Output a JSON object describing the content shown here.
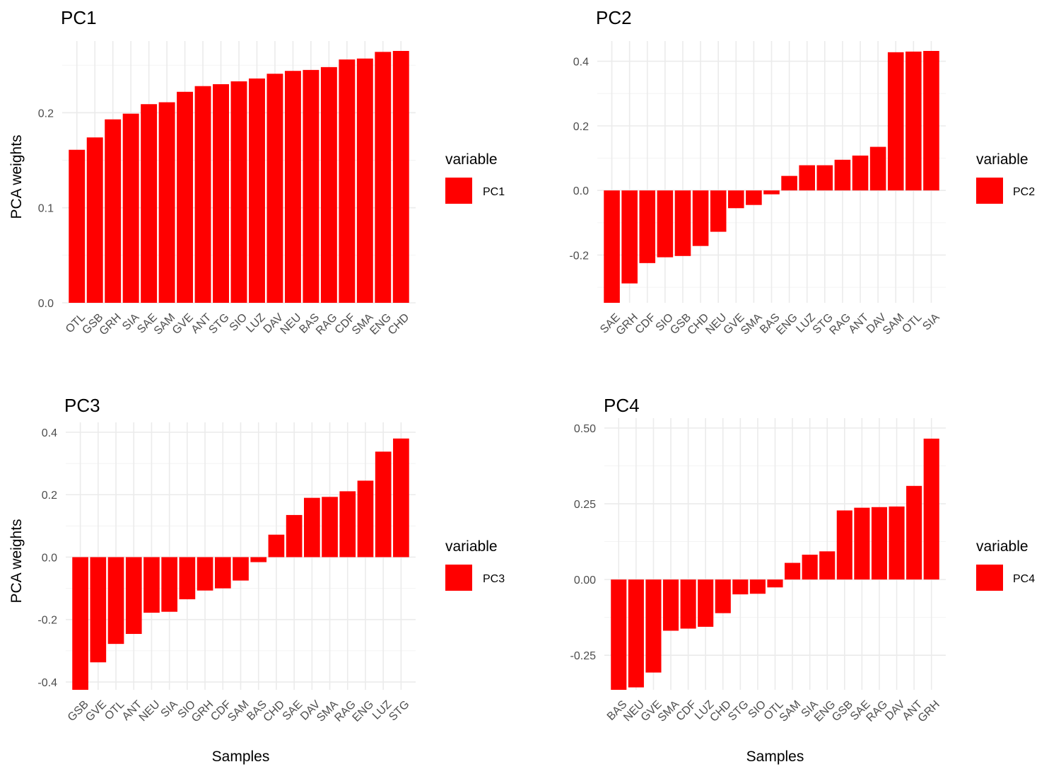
{
  "figure": {
    "panels": [
      {
        "legend": {
          "title": "variable",
          "label": "PC1"
        },
        "chart_data": {
          "type": "bar",
          "title": "PC1",
          "xlabel": "",
          "ylabel": "PCA weights",
          "categories": [
            "OTL",
            "GSB",
            "GRH",
            "SIA",
            "SAE",
            "SAM",
            "GVE",
            "ANT",
            "STG",
            "SIO",
            "LUZ",
            "DAV",
            "NEU",
            "BAS",
            "RAG",
            "CDF",
            "SMA",
            "ENG",
            "CHD"
          ],
          "series": [
            {
              "name": "PC1",
              "values": [
                0.161,
                0.174,
                0.193,
                0.199,
                0.209,
                0.211,
                0.222,
                0.228,
                0.23,
                0.233,
                0.236,
                0.241,
                0.244,
                0.245,
                0.248,
                0.256,
                0.257,
                0.264,
                0.265
              ]
            }
          ],
          "yticks": [
            0.0,
            0.1,
            0.2
          ],
          "ytick_labels": [
            "0.0",
            "0.1",
            "0.2"
          ],
          "ylim": [
            0,
            0.265
          ],
          "color": "#ff0000",
          "grid": true,
          "legend_position": "right"
        }
      },
      {
        "legend": {
          "title": "variable",
          "label": "PC2"
        },
        "chart_data": {
          "type": "bar",
          "title": "PC2",
          "xlabel": "",
          "ylabel": "",
          "categories": [
            "SAE",
            "GRH",
            "CDF",
            "SIO",
            "GSB",
            "CHD",
            "NEU",
            "GVE",
            "SMA",
            "BAS",
            "ENG",
            "LUZ",
            "STG",
            "RAG",
            "ANT",
            "DAV",
            "SAM",
            "OTL",
            "SIA"
          ],
          "series": [
            {
              "name": "PC2",
              "values": [
                -0.348,
                -0.288,
                -0.225,
                -0.207,
                -0.203,
                -0.172,
                -0.128,
                -0.055,
                -0.045,
                -0.012,
                0.045,
                0.078,
                0.078,
                0.095,
                0.108,
                0.135,
                0.428,
                0.43,
                0.432
              ]
            }
          ],
          "yticks": [
            -0.2,
            0.0,
            0.2,
            0.4
          ],
          "ytick_labels": [
            "-0.2",
            "0.0",
            "0.2",
            "0.4"
          ],
          "ylim": [
            -0.348,
            0.432
          ],
          "color": "#ff0000",
          "grid": true,
          "legend_position": "right"
        }
      },
      {
        "legend": {
          "title": "variable",
          "label": "PC3"
        },
        "chart_data": {
          "type": "bar",
          "title": "PC3",
          "xlabel": "Samples",
          "ylabel": "PCA weights",
          "categories": [
            "GSB",
            "GVE",
            "OTL",
            "ANT",
            "NEU",
            "SIA",
            "SIO",
            "GRH",
            "CDF",
            "SAM",
            "BAS",
            "CHD",
            "SAE",
            "DAV",
            "SMA",
            "RAG",
            "ENG",
            "LUZ",
            "STG"
          ],
          "series": [
            {
              "name": "PC3",
              "values": [
                -0.425,
                -0.337,
                -0.278,
                -0.246,
                -0.178,
                -0.175,
                -0.135,
                -0.107,
                -0.1,
                -0.075,
                -0.016,
                0.072,
                0.135,
                0.19,
                0.193,
                0.211,
                0.245,
                0.338,
                0.38
              ]
            }
          ],
          "yticks": [
            -0.4,
            -0.2,
            0.0,
            0.2,
            0.4
          ],
          "ytick_labels": [
            "-0.4",
            "-0.2",
            "0.0",
            "0.2",
            "0.4"
          ],
          "ylim": [
            -0.425,
            0.4
          ],
          "color": "#ff0000",
          "grid": true,
          "legend_position": "right"
        }
      },
      {
        "legend": {
          "title": "variable",
          "label": "PC4"
        },
        "chart_data": {
          "type": "bar",
          "title": "PC4",
          "xlabel": "Samples",
          "ylabel": "",
          "categories": [
            "BAS",
            "NEU",
            "GVE",
            "SMA",
            "CDF",
            "LUZ",
            "CHD",
            "STG",
            "SIO",
            "OTL",
            "SAM",
            "SIA",
            "ENG",
            "GSB",
            "SAE",
            "RAG",
            "DAV",
            "ANT",
            "GRH"
          ],
          "series": [
            {
              "name": "PC4",
              "values": [
                -0.364,
                -0.356,
                -0.307,
                -0.169,
                -0.162,
                -0.156,
                -0.111,
                -0.049,
                -0.047,
                -0.026,
                0.055,
                0.082,
                0.093,
                0.228,
                0.237,
                0.239,
                0.241,
                0.309,
                0.465
              ]
            }
          ],
          "yticks": [
            -0.25,
            0.0,
            0.25,
            0.5
          ],
          "ytick_labels": [
            "-0.25",
            "0.00",
            "0.25",
            "0.50"
          ],
          "ylim": [
            -0.364,
            0.5
          ],
          "color": "#ff0000",
          "grid": true,
          "legend_position": "right"
        }
      }
    ]
  }
}
